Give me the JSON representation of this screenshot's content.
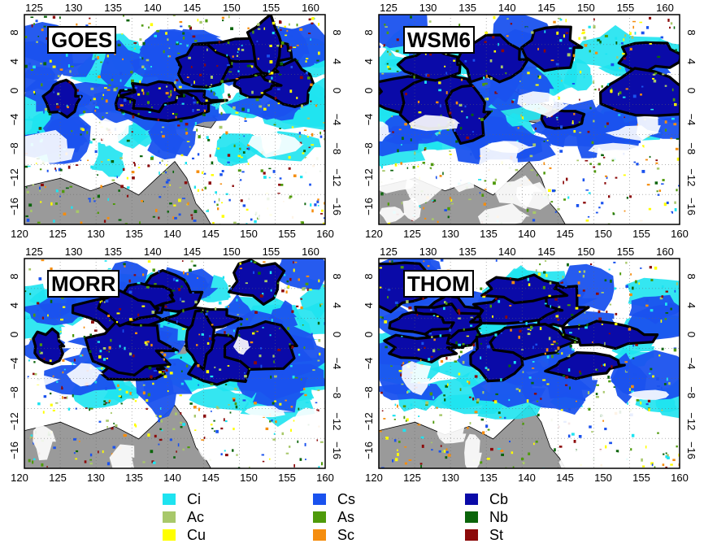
{
  "panels": [
    {
      "title": "GOES"
    },
    {
      "title": "WSM6"
    },
    {
      "title": "MORR"
    },
    {
      "title": "THOM"
    }
  ],
  "axes": {
    "top_ticks": [
      "125",
      "130",
      "135",
      "140",
      "145",
      "150",
      "155",
      "160"
    ],
    "bottom_ticks": [
      "120",
      "125",
      "130",
      "135",
      "140",
      "145",
      "150",
      "155",
      "160"
    ],
    "left_ticks": [
      "8",
      "4",
      "0",
      "−4",
      "−8",
      "−12",
      "−16"
    ],
    "right_ticks": [
      "8",
      "4",
      "0",
      "−4",
      "−8",
      "−12",
      "−16"
    ]
  },
  "legend": [
    {
      "label": "Ci",
      "color": "#1ee3f0"
    },
    {
      "label": "Ac",
      "color": "#a8c86a"
    },
    {
      "label": "Cu",
      "color": "#ffff00"
    },
    {
      "label": "Cs",
      "color": "#1a52ee"
    },
    {
      "label": "As",
      "color": "#4e9a0a"
    },
    {
      "label": "Sc",
      "color": "#f58d0e"
    },
    {
      "label": "Cb",
      "color": "#0a0aa8"
    },
    {
      "label": "Nb",
      "color": "#0a640a"
    },
    {
      "label": "St",
      "color": "#8c0a0a"
    }
  ],
  "colors": {
    "land": "#9a9a9a",
    "clear_sky": "#ffffff",
    "contour": "#000000"
  }
}
